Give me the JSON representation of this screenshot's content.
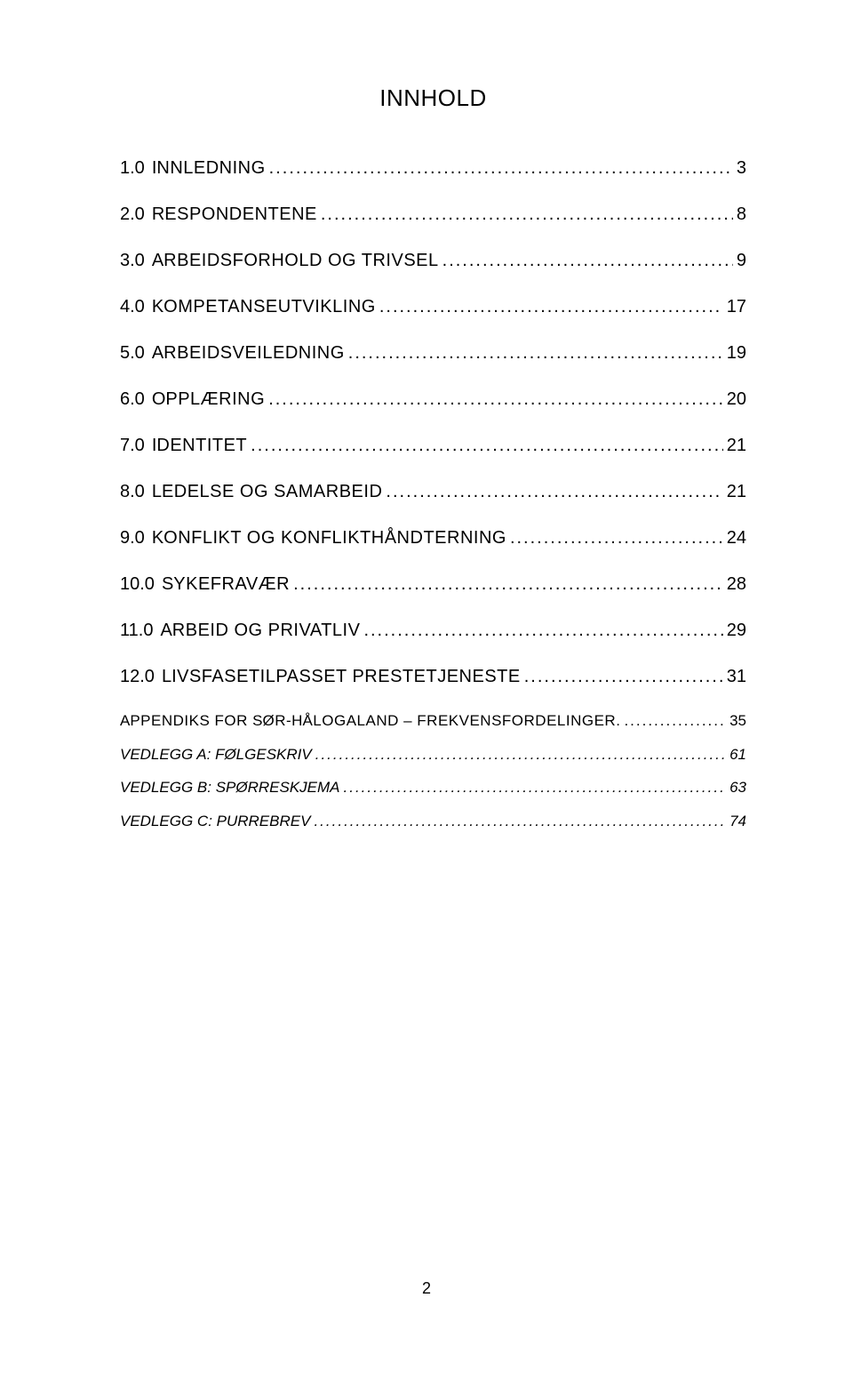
{
  "title": "INNHOLD",
  "entries": [
    {
      "num": "1.0",
      "first": "I",
      "rest": "NNLEDNING",
      "page": "3",
      "type": "main"
    },
    {
      "num": "2.0",
      "first": "R",
      "rest": "ESPONDENTENE",
      "page": "8",
      "type": "main"
    },
    {
      "num": "3.0",
      "first": "A",
      "rest": "RBEIDSFORHOLD OG TRIVSEL",
      "page": "9",
      "type": "main"
    },
    {
      "num": "4.0",
      "first": "K",
      "rest": "OMPETANSEUTVIKLING",
      "page": "17",
      "type": "main"
    },
    {
      "num": "5.0",
      "first": "A",
      "rest": "RBEIDSVEILEDNING",
      "page": "19",
      "type": "main"
    },
    {
      "num": "6.0",
      "first": "O",
      "rest": "PPLÆRING",
      "page": "20",
      "type": "main"
    },
    {
      "num": "7.0",
      "first": "I",
      "rest": "DENTITET",
      "page": "21",
      "type": "main"
    },
    {
      "num": "8.0",
      "first": "L",
      "rest": "EDELSE OG SAMARBEID",
      "page": "21",
      "type": "main"
    },
    {
      "num": "9.0",
      "first": "K",
      "rest": "ONFLIKT OG KONFLIKTHÅNDTERNING",
      "page": "24",
      "type": "main"
    },
    {
      "num": "10.0",
      "first": "S",
      "rest": "YKEFRAVÆR",
      "page": "28",
      "type": "main"
    },
    {
      "num": "11.0",
      "first": "A",
      "rest": "RBEID OG PRIVATLIV",
      "page": "29",
      "type": "main"
    },
    {
      "num": "12.0",
      "first": "L",
      "rest": "IVSFASETILPASSET PRESTETJENESTE",
      "page": "31",
      "type": "main"
    }
  ],
  "appendix": [
    {
      "first": "A",
      "rest": "PPENDIKS FOR ",
      "first2": "S",
      "rest2": "ØR-",
      "first3": "H",
      "rest3": "ÅLOGALAND – FREKVENSFORDELINGER.",
      "page": "35",
      "italic": false
    },
    {
      "label": "VEDLEGG A: FØLGESKRIV",
      "page": "61",
      "italic": true
    },
    {
      "label": "VEDLEGG B: SPØRRESKJEMA",
      "page": "63",
      "italic": true
    },
    {
      "label": "VEDLEGG C: PURREBREV",
      "page": "74",
      "italic": true
    }
  ],
  "pageNumber": "2",
  "dots": "................................................................................................................................................................"
}
